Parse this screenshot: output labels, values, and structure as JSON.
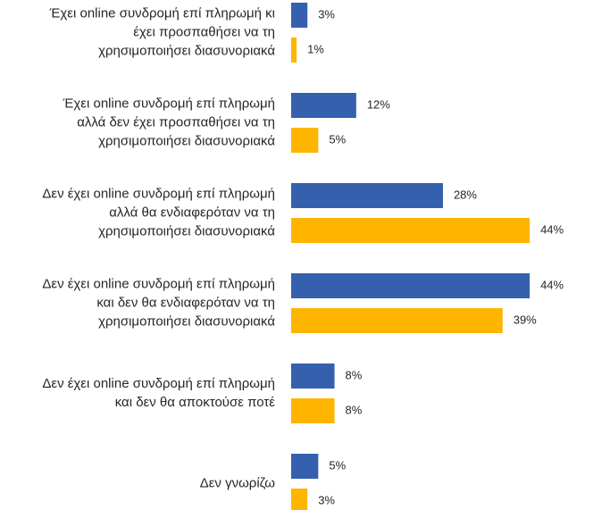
{
  "chart_data": {
    "type": "bar",
    "orientation": "horizontal",
    "categories": [
      [
        "Έχει online συνδρομή επί πληρωμή κι",
        "έχει προσπαθήσει να τη",
        "χρησιμοποιήσει διασυνοριακά"
      ],
      [
        "Έχει online συνδρομή επί πληρωμή",
        "αλλά δεν έχει προσπαθήσει να τη",
        "χρησιμοποιήσει διασυνοριακά"
      ],
      [
        "Δεν έχει online συνδρομή επί πληρωμή",
        "αλλά θα ενδιαφερόταν να τη",
        "χρησιμοποιήσει διασυνοριακά"
      ],
      [
        "Δεν έχει online συνδρομή επί πληρωμή",
        "και δεν θα ενδιαφερόταν να τη",
        "χρησιμοποιήσει διασυνοριακά"
      ],
      [
        "Δεν έχει online συνδρομή επί πληρωμή",
        "και δεν θα αποκτούσε ποτέ"
      ],
      [
        "Δεν γνωρίζω"
      ]
    ],
    "series": [
      {
        "color": "#3560ae",
        "values": [
          3,
          12,
          28,
          44,
          8,
          5
        ],
        "value_labels": [
          "3%",
          "12%",
          "28%",
          "44%",
          "8%",
          "5%"
        ]
      },
      {
        "color": "#ffb400",
        "values": [
          1,
          5,
          44,
          39,
          8,
          3
        ],
        "value_labels": [
          "1%",
          "5%",
          "44%",
          "39%",
          "8%",
          "3%"
        ]
      }
    ]
  }
}
